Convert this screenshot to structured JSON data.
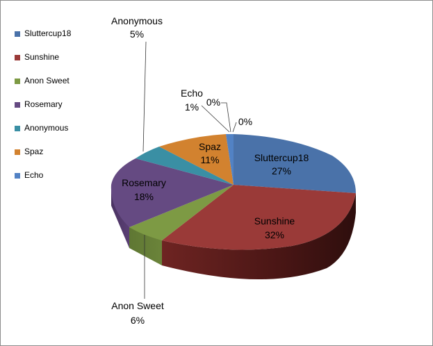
{
  "chart_data": {
    "type": "pie",
    "title": "",
    "legend_position": "left",
    "series": [
      {
        "name": "Sluttercup18",
        "value": 27,
        "label": "Sluttercup18",
        "pct": "27%",
        "color": "#4a72a9"
      },
      {
        "name": "Sunshine",
        "value": 32,
        "label": "Sunshine",
        "pct": "32%",
        "color": "#9a3a38"
      },
      {
        "name": "Anon Sweet",
        "value": 6,
        "label": "Anon Sweet",
        "pct": "6%",
        "color": "#7d9a44"
      },
      {
        "name": "Rosemary",
        "value": 18,
        "label": "Rosemary",
        "pct": "18%",
        "color": "#654a82"
      },
      {
        "name": "Anonymous",
        "value": 5,
        "label": "Anonymous",
        "pct": "5%",
        "color": "#3a8fa4"
      },
      {
        "name": "Spaz",
        "value": 11,
        "label": "Spaz",
        "pct": "11%",
        "color": "#d2822f"
      },
      {
        "name": "Echo",
        "value": 1,
        "label": "Echo",
        "pct": "1%",
        "color": "#5282c4"
      }
    ],
    "extra_labels": [
      "0%",
      "0%"
    ]
  }
}
